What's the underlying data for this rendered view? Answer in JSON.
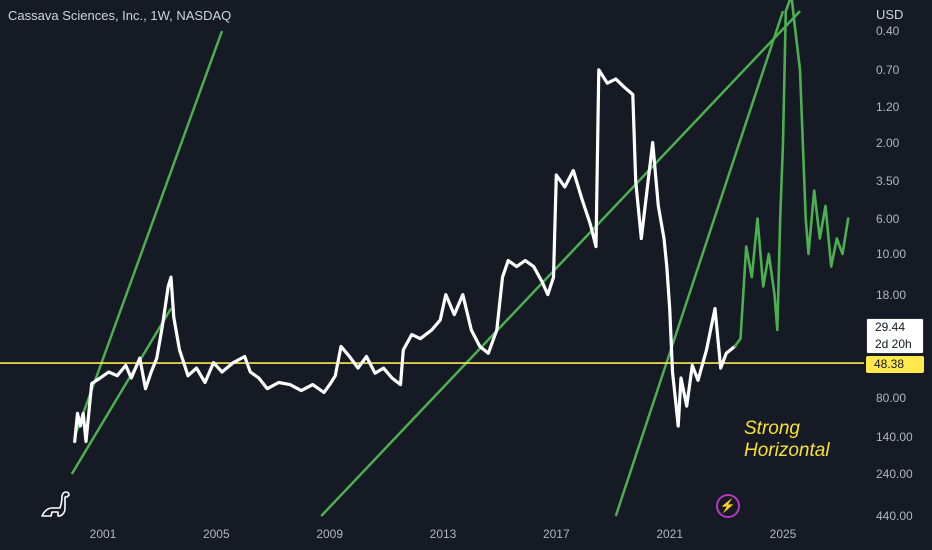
{
  "header": {
    "title": "Cassava Sciences, Inc., 1W, NASDAQ",
    "currency": "USD"
  },
  "price_badge": {
    "price": "29.44",
    "countdown": "2d 20h"
  },
  "level_badge": {
    "value": "48.38"
  },
  "annotation": {
    "line1": "Strong",
    "line2": "Horizontal"
  },
  "icons": {
    "logo": "dinosaur-logo-icon",
    "bolt": "lightning-bolt-icon"
  },
  "colors": {
    "background": "#151a24",
    "price_history": "#ffffff",
    "price_recent": "#4caf50",
    "channel": "#4caf50",
    "horizontal": "#ffe94d",
    "annotation": "#f7e033"
  },
  "chart_data": {
    "type": "line",
    "title": "Cassava Sciences, Inc., 1W, NASDAQ",
    "xlabel": "",
    "ylabel": "",
    "x_ticks": [
      "2001",
      "2005",
      "2009",
      "2013",
      "2017",
      "2021",
      "2025"
    ],
    "y_scale": "log, inverted",
    "y_ticks": [
      "0.40",
      "0.70",
      "1.20",
      "2.00",
      "3.50",
      "6.00",
      "10.00",
      "18.00",
      "80.00",
      "140.00",
      "240.00",
      "440.00"
    ],
    "ylim": [
      0.4,
      440
    ],
    "grid": false,
    "series": [
      {
        "color": "#ffffff",
        "points": [
          [
            2000.0,
            150
          ],
          [
            2000.1,
            100
          ],
          [
            2000.2,
            120
          ],
          [
            2000.3,
            100
          ],
          [
            2000.4,
            150
          ],
          [
            2000.6,
            65
          ],
          [
            2000.9,
            60
          ],
          [
            2001.2,
            55
          ],
          [
            2001.5,
            58
          ],
          [
            2001.8,
            50
          ],
          [
            2002.0,
            60
          ],
          [
            2002.3,
            45
          ],
          [
            2002.5,
            70
          ],
          [
            2002.7,
            55
          ],
          [
            2002.9,
            45
          ],
          [
            2003.1,
            28
          ],
          [
            2003.3,
            16
          ],
          [
            2003.4,
            14
          ],
          [
            2003.5,
            25
          ],
          [
            2003.7,
            40
          ],
          [
            2004.0,
            58
          ],
          [
            2004.3,
            52
          ],
          [
            2004.6,
            64
          ],
          [
            2004.9,
            48
          ],
          [
            2005.2,
            55
          ],
          [
            2005.6,
            48
          ],
          [
            2006.0,
            44
          ],
          [
            2006.2,
            55
          ],
          [
            2006.5,
            60
          ],
          [
            2006.8,
            70
          ],
          [
            2007.2,
            64
          ],
          [
            2007.6,
            66
          ],
          [
            2008.0,
            72
          ],
          [
            2008.4,
            66
          ],
          [
            2008.8,
            74
          ],
          [
            2009.0,
            66
          ],
          [
            2009.2,
            58
          ],
          [
            2009.4,
            38
          ],
          [
            2009.7,
            44
          ],
          [
            2010.0,
            52
          ],
          [
            2010.3,
            44
          ],
          [
            2010.6,
            56
          ],
          [
            2010.9,
            52
          ],
          [
            2011.2,
            60
          ],
          [
            2011.5,
            66
          ],
          [
            2011.6,
            40
          ],
          [
            2011.9,
            32
          ],
          [
            2012.2,
            34
          ],
          [
            2012.6,
            30
          ],
          [
            2012.9,
            26
          ],
          [
            2013.1,
            18
          ],
          [
            2013.4,
            24
          ],
          [
            2013.7,
            18
          ],
          [
            2014.0,
            30
          ],
          [
            2014.3,
            38
          ],
          [
            2014.6,
            42
          ],
          [
            2014.9,
            30
          ],
          [
            2015.1,
            14
          ],
          [
            2015.3,
            11
          ],
          [
            2015.6,
            12
          ],
          [
            2015.9,
            11
          ],
          [
            2016.2,
            12
          ],
          [
            2016.5,
            15
          ],
          [
            2016.7,
            18
          ],
          [
            2016.9,
            14
          ],
          [
            2017.0,
            3.2
          ],
          [
            2017.3,
            3.8
          ],
          [
            2017.6,
            3.0
          ],
          [
            2017.9,
            4.5
          ],
          [
            2018.2,
            6.5
          ],
          [
            2018.4,
            9.0
          ],
          [
            2018.5,
            0.7
          ],
          [
            2018.8,
            0.85
          ],
          [
            2019.1,
            0.8
          ],
          [
            2019.4,
            0.9
          ],
          [
            2019.7,
            1.0
          ],
          [
            2019.8,
            3.5
          ],
          [
            2020.0,
            8.0
          ],
          [
            2020.2,
            4.0
          ],
          [
            2020.4,
            2.0
          ],
          [
            2020.6,
            5.0
          ],
          [
            2020.8,
            8.0
          ],
          [
            2020.9,
            12
          ],
          [
            2021.0,
            22
          ],
          [
            2021.1,
            55
          ],
          [
            2021.2,
            80
          ],
          [
            2021.3,
            120
          ],
          [
            2021.4,
            60
          ],
          [
            2021.6,
            90
          ],
          [
            2021.8,
            50
          ],
          [
            2022.0,
            62
          ],
          [
            2022.3,
            40
          ],
          [
            2022.6,
            22
          ],
          [
            2022.8,
            52
          ],
          [
            2023.0,
            42
          ],
          [
            2023.3,
            38
          ]
        ]
      },
      {
        "color": "#4caf50",
        "points": [
          [
            2023.3,
            38
          ],
          [
            2023.5,
            34
          ],
          [
            2023.7,
            9
          ],
          [
            2023.9,
            14
          ],
          [
            2024.1,
            6
          ],
          [
            2024.3,
            16
          ],
          [
            2024.5,
            10
          ],
          [
            2024.7,
            18
          ],
          [
            2024.8,
            30
          ],
          [
            2024.9,
            6
          ],
          [
            2025.0,
            2.0
          ],
          [
            2025.1,
            0.3
          ],
          [
            2025.3,
            0.24
          ],
          [
            2025.4,
            0.35
          ],
          [
            2025.6,
            0.7
          ],
          [
            2025.7,
            2.0
          ],
          [
            2025.8,
            6.0
          ],
          [
            2025.9,
            10
          ],
          [
            2026.1,
            4.0
          ],
          [
            2026.3,
            8.0
          ],
          [
            2026.5,
            5.0
          ],
          [
            2026.7,
            12
          ],
          [
            2026.9,
            8.0
          ],
          [
            2027.1,
            10
          ],
          [
            2027.3,
            6.0
          ]
        ]
      }
    ],
    "trendlines": [
      {
        "color": "#4caf50",
        "points": [
          [
            1999.9,
            240
          ],
          [
            2003.4,
            22
          ]
        ]
      },
      {
        "color": "#4caf50",
        "points": [
          [
            2000.0,
            140
          ],
          [
            2005.2,
            0.4
          ]
        ]
      },
      {
        "color": "#4caf50",
        "points": [
          [
            2008.7,
            440
          ],
          [
            2025.6,
            0.3
          ]
        ]
      },
      {
        "color": "#4caf50",
        "points": [
          [
            2019.1,
            440
          ],
          [
            2025.0,
            0.3
          ]
        ]
      }
    ],
    "horizontal_lines": [
      {
        "color": "#ffe94d",
        "value": 48.38
      }
    ]
  }
}
